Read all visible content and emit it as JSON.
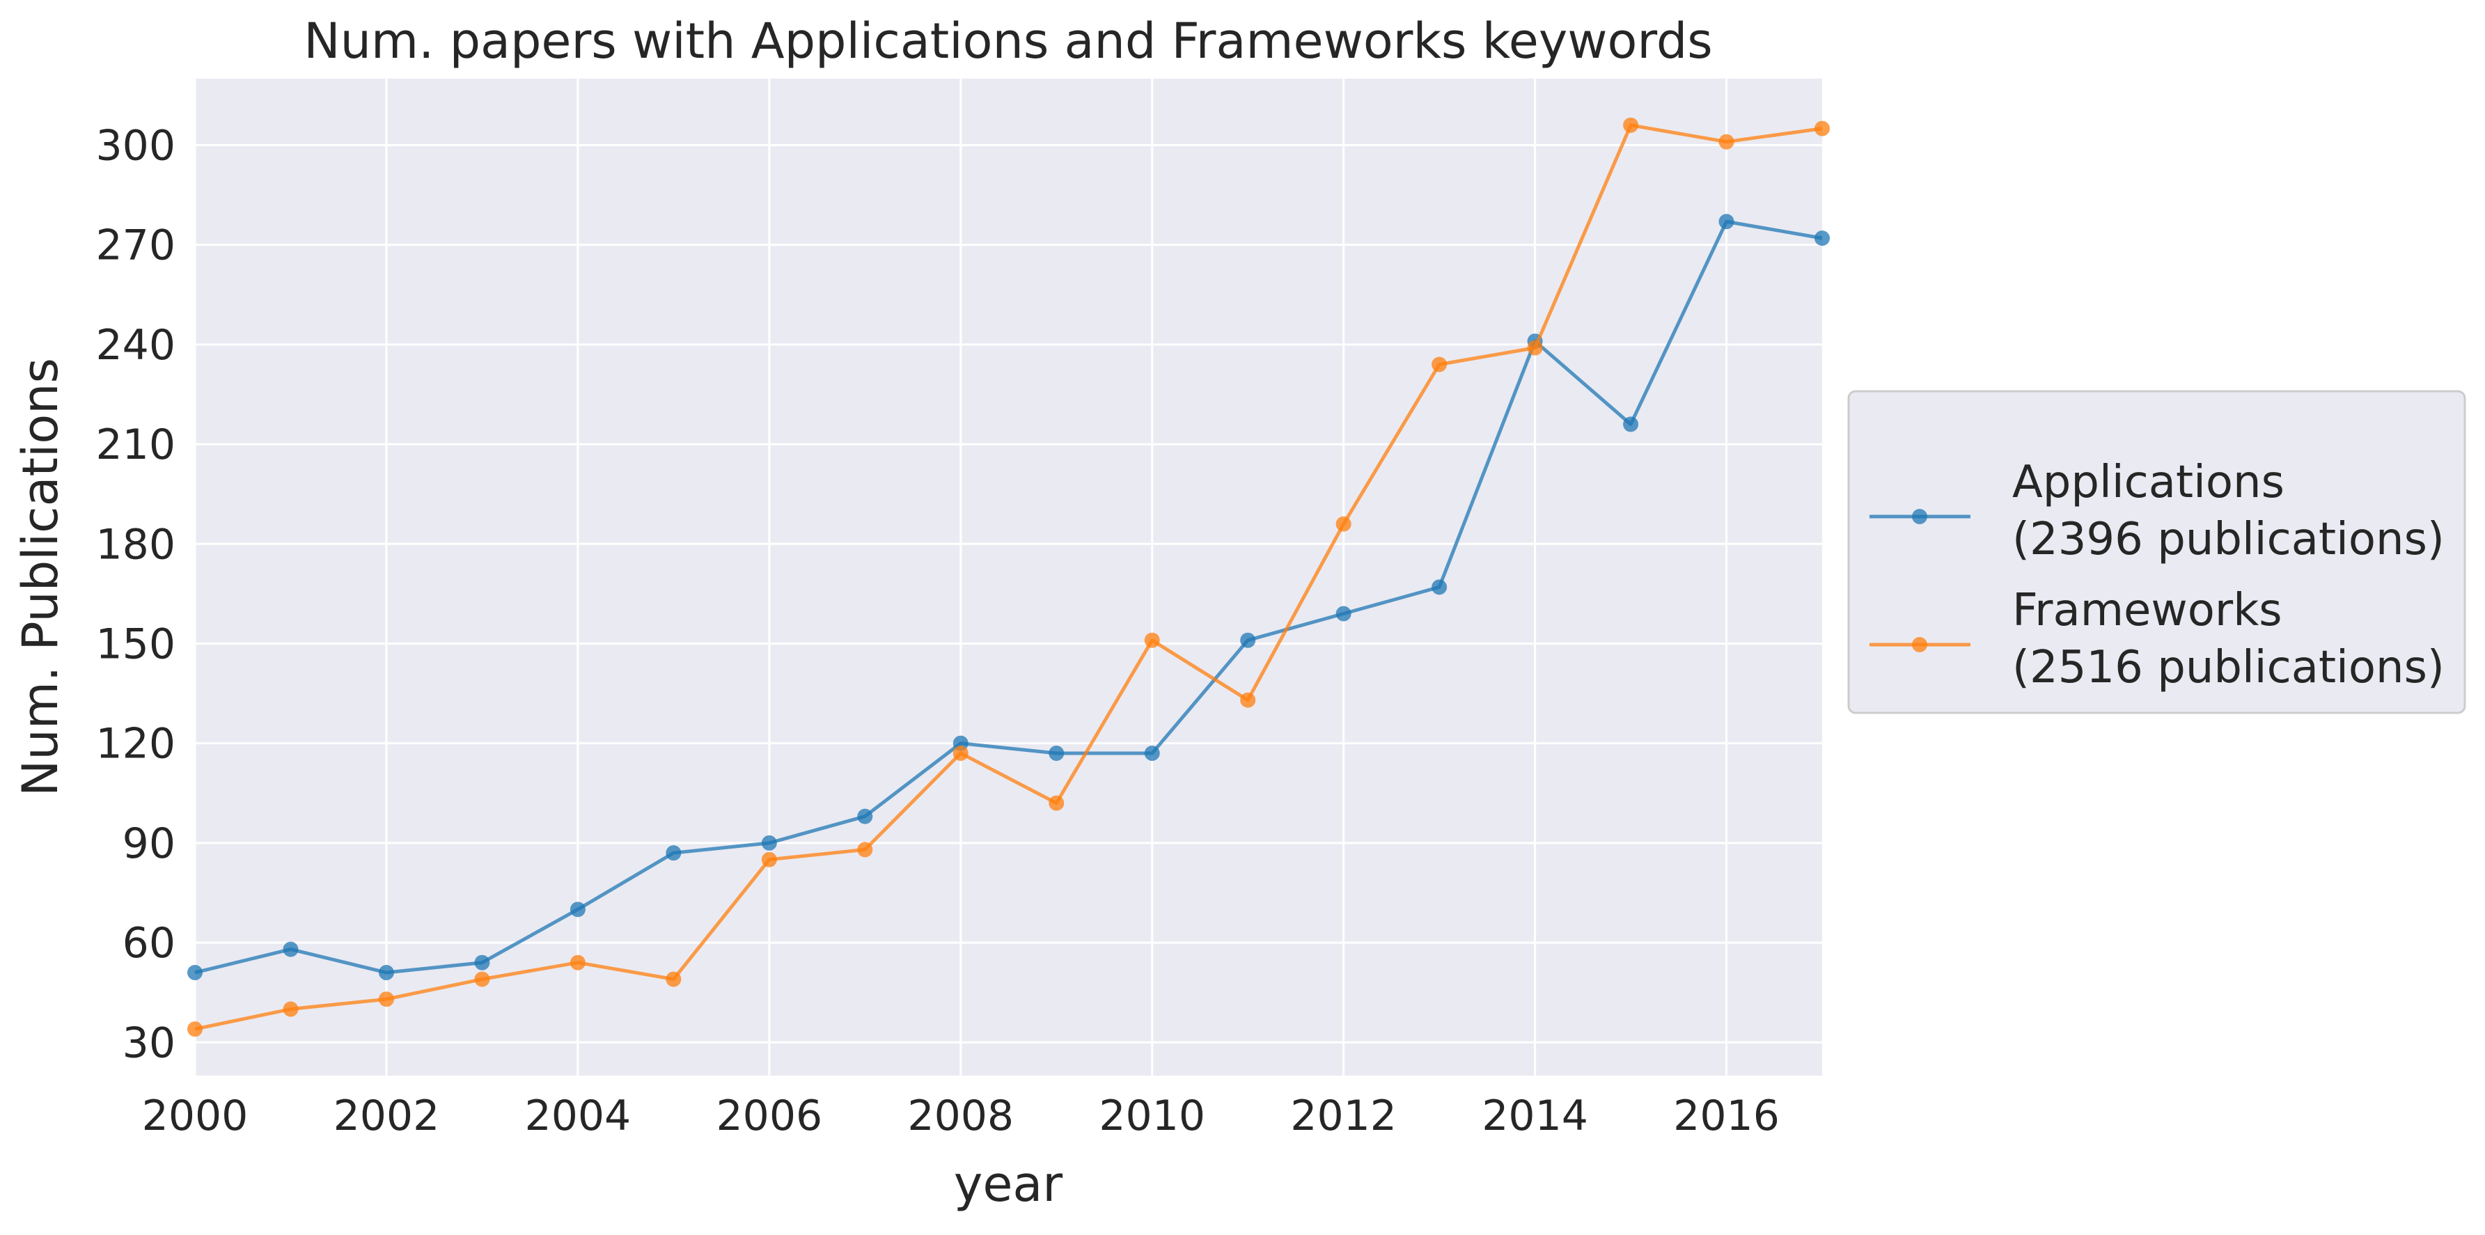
{
  "chart_data": {
    "type": "line",
    "title": "Num. papers with Applications and Frameworks keywords",
    "xlabel": "year",
    "ylabel": "Num. Publications",
    "x": [
      2000,
      2001,
      2002,
      2003,
      2004,
      2005,
      2006,
      2007,
      2008,
      2009,
      2010,
      2011,
      2012,
      2013,
      2014,
      2015,
      2016,
      2017
    ],
    "xlim": [
      2000,
      2017
    ],
    "ylim": [
      20,
      320
    ],
    "xticks": [
      "2000",
      "2002",
      "2004",
      "2006",
      "2008",
      "2010",
      "2012",
      "2014",
      "2016"
    ],
    "yticks": [
      "30",
      "60",
      "90",
      "120",
      "150",
      "180",
      "210",
      "240",
      "270",
      "300"
    ],
    "grid": true,
    "legend_position": "right",
    "series": [
      {
        "name": "Applications",
        "legend_label_line1": "Applications",
        "legend_label_line2": "(2396 publications)",
        "color": "#1f77b4",
        "values": [
          51,
          58,
          51,
          54,
          70,
          87,
          90,
          98,
          120,
          117,
          117,
          151,
          159,
          167,
          241,
          216,
          277,
          272
        ]
      },
      {
        "name": "Frameworks",
        "legend_label_line1": "Frameworks",
        "legend_label_line2": "(2516 publications)",
        "color": "#ff7f0e",
        "values": [
          34,
          40,
          43,
          49,
          54,
          49,
          85,
          88,
          117,
          102,
          151,
          133,
          186,
          234,
          239,
          306,
          301,
          305
        ]
      }
    ],
    "colors": {
      "plot_background": "#eaeaf2",
      "grid": "#ffffff",
      "text": "#262626",
      "legend_border": "#cccccc"
    }
  }
}
